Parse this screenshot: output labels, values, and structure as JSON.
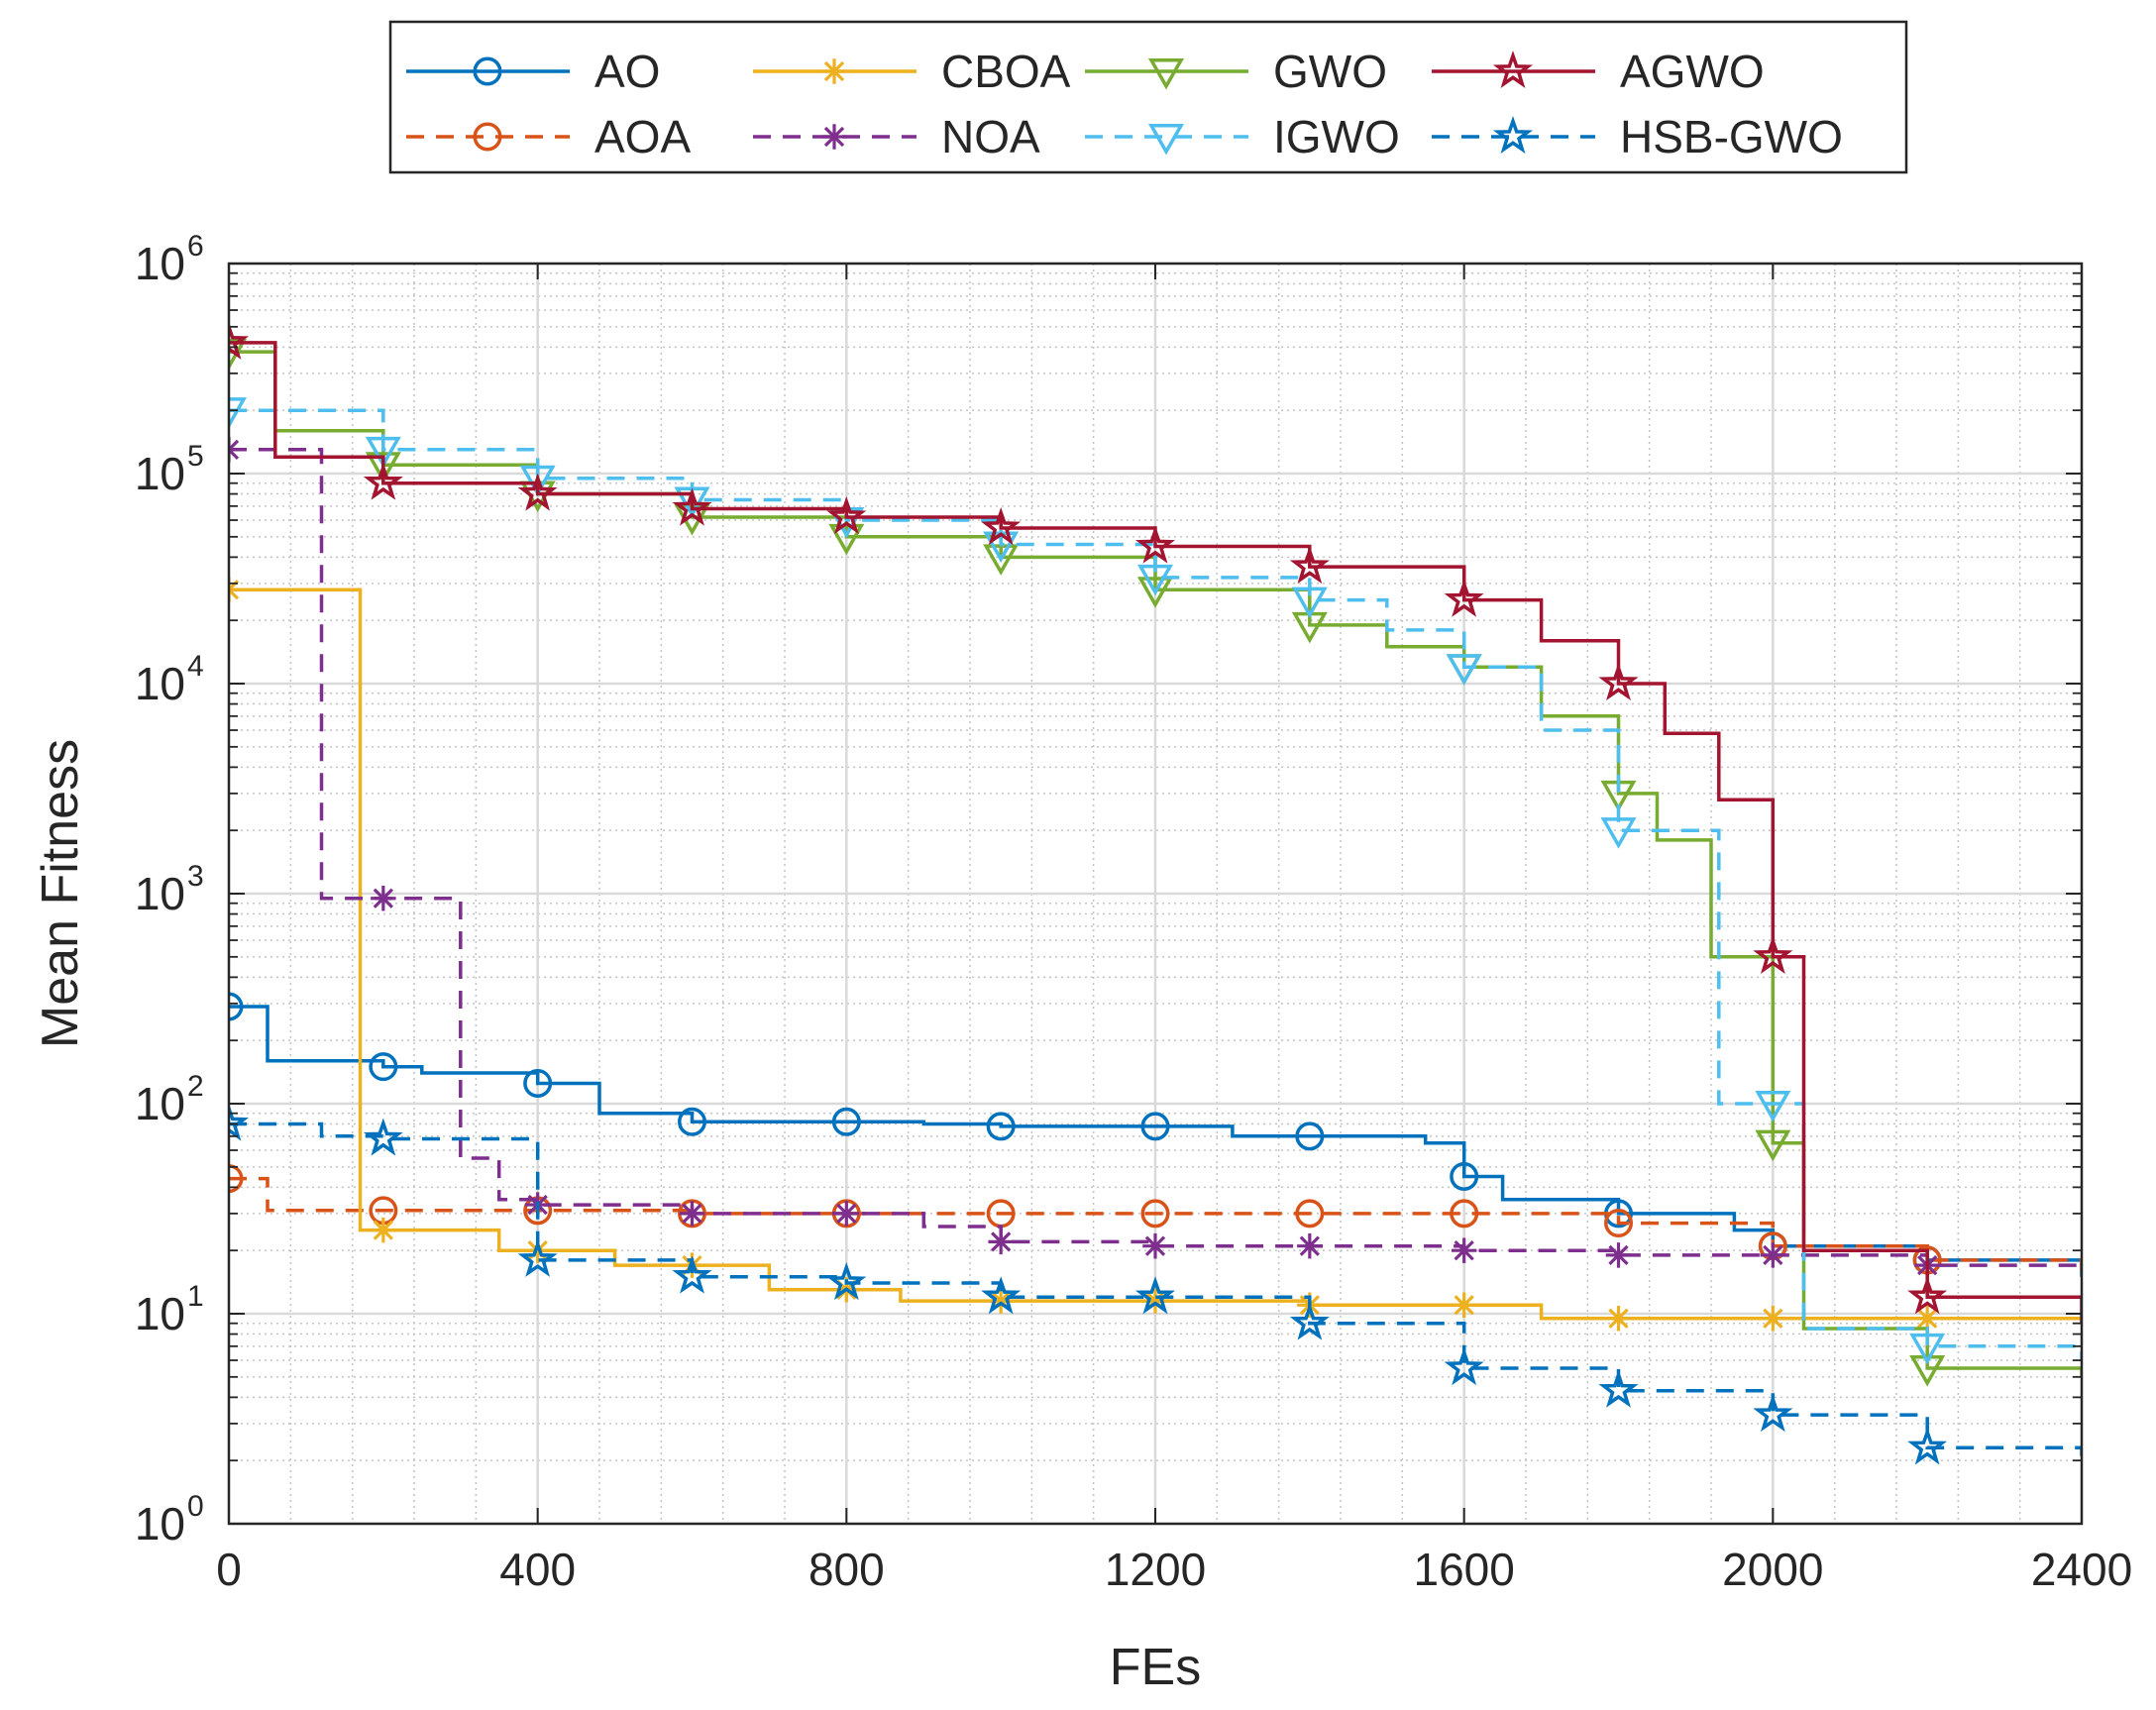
{
  "chart_data": {
    "type": "line",
    "xlabel": "FEs",
    "ylabel": "Mean Fitness",
    "xlim": [
      0,
      2400
    ],
    "ylim": [
      1,
      1000000
    ],
    "yscale": "log",
    "grid": true,
    "minor_grid": true,
    "legend_position": "top-center",
    "x_ticks": [
      "0",
      "400",
      "800",
      "1200",
      "1600",
      "2000",
      "2400"
    ],
    "y_ticks": [
      {
        "base": "10",
        "exp": "0"
      },
      {
        "base": "10",
        "exp": "1"
      },
      {
        "base": "10",
        "exp": "2"
      },
      {
        "base": "10",
        "exp": "3"
      },
      {
        "base": "10",
        "exp": "4"
      },
      {
        "base": "10",
        "exp": "5"
      },
      {
        "base": "10",
        "exp": "6"
      }
    ],
    "series": [
      {
        "name": "AO",
        "color": "#0072BD",
        "dash": false,
        "marker": "circle",
        "x": [
          0,
          50,
          200,
          250,
          400,
          480,
          600,
          900,
          1000,
          1200,
          1300,
          1400,
          1550,
          1600,
          1650,
          1800,
          1950,
          2000,
          2200,
          2400
        ],
        "values": [
          290,
          160,
          150,
          140,
          125,
          90,
          82,
          80,
          78,
          78,
          70,
          70,
          65,
          45,
          35,
          30,
          25,
          21,
          18,
          15
        ]
      },
      {
        "name": "AOA",
        "color": "#D95319",
        "dash": true,
        "marker": "circle",
        "x": [
          0,
          50,
          200,
          600,
          1000,
          1400,
          1800,
          2000,
          2200,
          2400
        ],
        "values": [
          44,
          31,
          31,
          30,
          30,
          30,
          27,
          21,
          18,
          16
        ]
      },
      {
        "name": "CBOA",
        "color": "#EDB120",
        "dash": false,
        "marker": "asterisk",
        "x": [
          0,
          170,
          200,
          350,
          500,
          700,
          870,
          1000,
          1200,
          1400,
          1600,
          1700,
          1800,
          2000,
          2200,
          2400
        ],
        "values": [
          28000,
          25,
          25,
          20,
          17,
          13,
          11.5,
          11.5,
          11.5,
          11,
          11,
          9.5,
          9.5,
          9.5,
          9.5,
          9
        ]
      },
      {
        "name": "NOA",
        "color": "#7E2F8E",
        "dash": true,
        "marker": "asterisk",
        "x": [
          0,
          60,
          120,
          240,
          300,
          350,
          400,
          600,
          900,
          1000,
          1200,
          1400,
          1600,
          1800,
          2000,
          2200,
          2400
        ],
        "values": [
          130000,
          130000,
          950,
          950,
          55,
          35,
          33,
          30,
          26,
          22,
          21,
          21,
          20,
          19,
          19,
          17,
          16
        ]
      },
      {
        "name": "GWO",
        "color": "#77AC30",
        "dash": false,
        "marker": "triangle-down",
        "x": [
          0,
          60,
          200,
          400,
          600,
          800,
          1000,
          1200,
          1400,
          1500,
          1600,
          1700,
          1800,
          1850,
          1920,
          1980,
          2000,
          2040,
          2200,
          2400
        ],
        "values": [
          380000,
          160000,
          110000,
          80000,
          62000,
          50000,
          40000,
          28000,
          19000,
          15000,
          12000,
          7000,
          3000,
          1800,
          500,
          500,
          65,
          8.5,
          5.5,
          5
        ]
      },
      {
        "name": "IGWO",
        "color": "#4DBEEE",
        "dash": true,
        "marker": "triangle-down",
        "x": [
          0,
          120,
          200,
          400,
          600,
          800,
          1000,
          1200,
          1400,
          1500,
          1600,
          1700,
          1800,
          1920,
          1930,
          2000,
          2040,
          2200,
          2400
        ],
        "values": [
          200000,
          200000,
          130000,
          95000,
          75000,
          60000,
          46000,
          32000,
          25000,
          18000,
          12000,
          6000,
          2000,
          2000,
          100,
          100,
          8.5,
          7,
          6
        ]
      },
      {
        "name": "AGWO",
        "color": "#A2142F",
        "dash": false,
        "marker": "pentagram",
        "x": [
          0,
          60,
          200,
          400,
          600,
          800,
          1000,
          1200,
          1400,
          1600,
          1700,
          1800,
          1860,
          1930,
          2000,
          2040,
          2200,
          2400
        ],
        "values": [
          420000,
          120000,
          90000,
          80000,
          68000,
          62000,
          55000,
          45000,
          36000,
          25000,
          16000,
          10000,
          5800,
          2800,
          500,
          20,
          12,
          9
        ]
      },
      {
        "name": "HSB-GWO",
        "color": "#0072BD",
        "dash": true,
        "marker": "pentagram",
        "x": [
          0,
          120,
          200,
          400,
          600,
          800,
          1000,
          1200,
          1400,
          1600,
          1800,
          2000,
          2200,
          2400
        ],
        "values": [
          80,
          70,
          68,
          18,
          15,
          14,
          12,
          12,
          9,
          5.5,
          4.3,
          3.3,
          2.3,
          2.1
        ]
      }
    ]
  }
}
